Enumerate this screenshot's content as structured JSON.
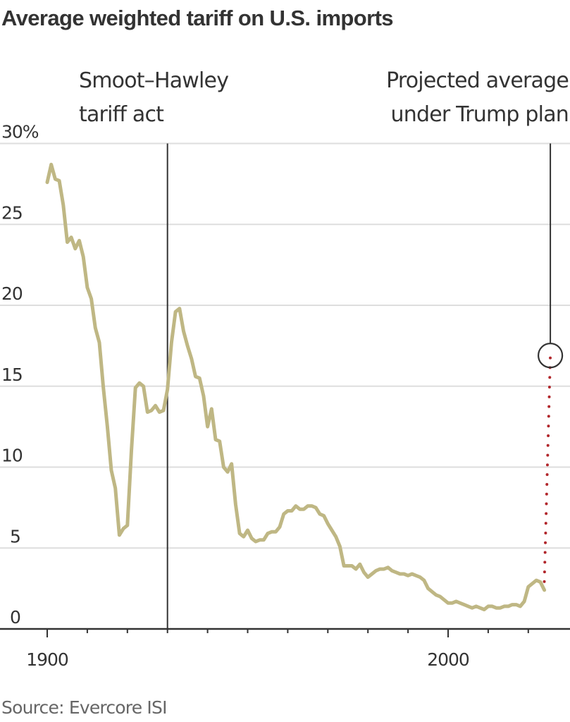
{
  "chart_data": {
    "type": "line",
    "title": "Average weighted tariff on U.S. imports",
    "xlabel": "",
    "ylabel": "",
    "xlim": [
      1900,
      2030
    ],
    "ylim": [
      0,
      30
    ],
    "y_ticks": [
      0,
      5,
      10,
      15,
      20,
      25,
      30
    ],
    "y_tick_labels": [
      "0",
      "5",
      "10",
      "15",
      "20",
      "25",
      "30%"
    ],
    "x_ticks": [
      1900,
      1910,
      1920,
      1930,
      1940,
      1950,
      1960,
      1970,
      1980,
      1990,
      2000,
      2010,
      2020
    ],
    "x_tick_labels": {
      "1900": "1900",
      "2000": "2000"
    },
    "grid": true,
    "series": [
      {
        "name": "Average weighted tariff",
        "color": "#bfb784",
        "x": [
          1900,
          1901,
          1902,
          1903,
          1904,
          1905,
          1906,
          1907,
          1908,
          1909,
          1910,
          1911,
          1912,
          1913,
          1914,
          1915,
          1916,
          1917,
          1918,
          1919,
          1920,
          1921,
          1922,
          1923,
          1924,
          1925,
          1926,
          1927,
          1928,
          1929,
          1930,
          1931,
          1932,
          1933,
          1934,
          1935,
          1936,
          1937,
          1938,
          1939,
          1940,
          1941,
          1942,
          1943,
          1944,
          1945,
          1946,
          1947,
          1948,
          1949,
          1950,
          1951,
          1952,
          1953,
          1954,
          1955,
          1956,
          1957,
          1958,
          1959,
          1960,
          1961,
          1962,
          1963,
          1964,
          1965,
          1966,
          1967,
          1968,
          1969,
          1970,
          1971,
          1972,
          1973,
          1974,
          1975,
          1976,
          1977,
          1978,
          1979,
          1980,
          1981,
          1982,
          1983,
          1984,
          1985,
          1986,
          1987,
          1988,
          1989,
          1990,
          1991,
          1992,
          1993,
          1994,
          1995,
          1996,
          1997,
          1998,
          1999,
          2000,
          2001,
          2002,
          2003,
          2004,
          2005,
          2006,
          2007,
          2008,
          2009,
          2010,
          2011,
          2012,
          2013,
          2014,
          2015,
          2016,
          2017,
          2018,
          2019,
          2020,
          2021,
          2022,
          2023,
          2024
        ],
        "values": [
          27.6,
          28.7,
          27.8,
          27.7,
          26.2,
          23.9,
          24.2,
          23.5,
          24.0,
          23.0,
          21.1,
          20.4,
          18.6,
          17.7,
          14.9,
          12.5,
          9.8,
          8.7,
          5.8,
          6.2,
          6.4,
          11.0,
          14.9,
          15.2,
          15.0,
          13.4,
          13.5,
          13.8,
          13.4,
          13.5,
          14.8,
          17.7,
          19.6,
          19.8,
          18.4,
          17.5,
          16.7,
          15.6,
          15.5,
          14.4,
          12.5,
          13.6,
          11.7,
          11.6,
          10.0,
          9.7,
          10.2,
          7.7,
          5.9,
          5.7,
          6.1,
          5.6,
          5.4,
          5.5,
          5.5,
          5.9,
          6.0,
          6.0,
          6.3,
          7.1,
          7.3,
          7.3,
          7.6,
          7.4,
          7.4,
          7.6,
          7.6,
          7.5,
          7.1,
          7.0,
          6.5,
          6.1,
          5.7,
          5.1,
          3.9,
          3.9,
          3.9,
          3.7,
          4.0,
          3.5,
          3.2,
          3.4,
          3.6,
          3.7,
          3.7,
          3.8,
          3.6,
          3.5,
          3.4,
          3.4,
          3.3,
          3.4,
          3.3,
          3.2,
          3.0,
          2.5,
          2.3,
          2.1,
          2.0,
          1.8,
          1.6,
          1.6,
          1.7,
          1.6,
          1.5,
          1.4,
          1.3,
          1.4,
          1.3,
          1.2,
          1.4,
          1.4,
          1.3,
          1.3,
          1.4,
          1.4,
          1.5,
          1.5,
          1.4,
          1.7,
          2.6,
          2.8,
          3.0,
          2.9,
          2.4
        ]
      },
      {
        "name": "Projected average under Trump plan",
        "style": "dotted",
        "color": "#b1262b",
        "x": [
          2024,
          2025.5
        ],
        "values": [
          2.4,
          16.9
        ]
      }
    ],
    "annotations": [
      {
        "label_lines": [
          "Smoot–Hawley",
          "tariff act"
        ],
        "x": 1930,
        "type": "vertical-line"
      },
      {
        "label_lines": [
          "Projected average",
          "under Trump plan"
        ],
        "x": 2025.5,
        "y": 16.9,
        "type": "circle-callout"
      }
    ],
    "source": "Source: Evercore ISI"
  }
}
